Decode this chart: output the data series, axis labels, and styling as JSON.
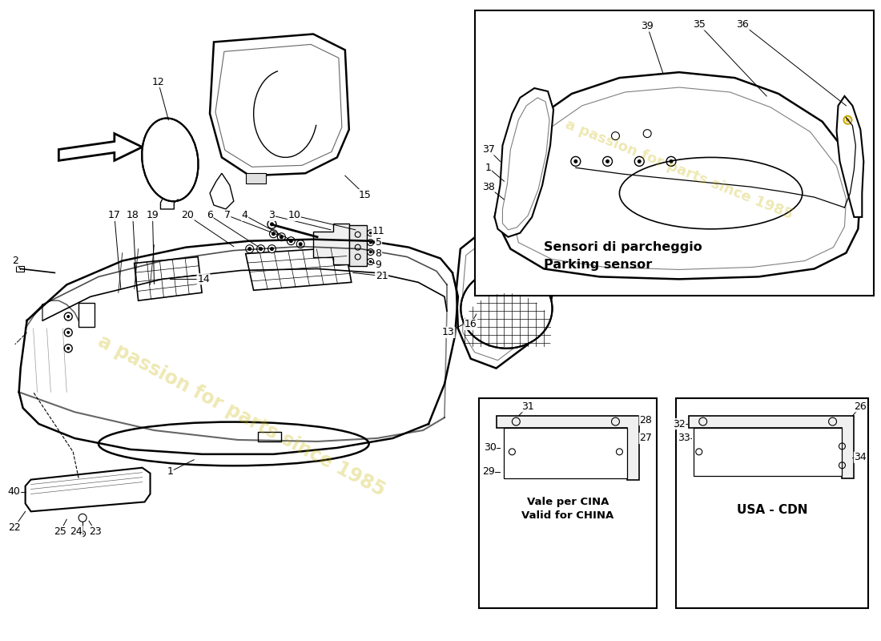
{
  "bg_color": "#ffffff",
  "line_color": "#000000",
  "labels": {
    "parking_title_it": "Sensori di parcheggio",
    "parking_title_en": "Parking sensor",
    "china_title_it": "Vale per CINA",
    "china_title_en": "Valid for CHINA",
    "usa_title": "USA - CDN"
  },
  "watermark": "a passion for parts since 1985",
  "watermark2": "a passion for parts since 1985"
}
